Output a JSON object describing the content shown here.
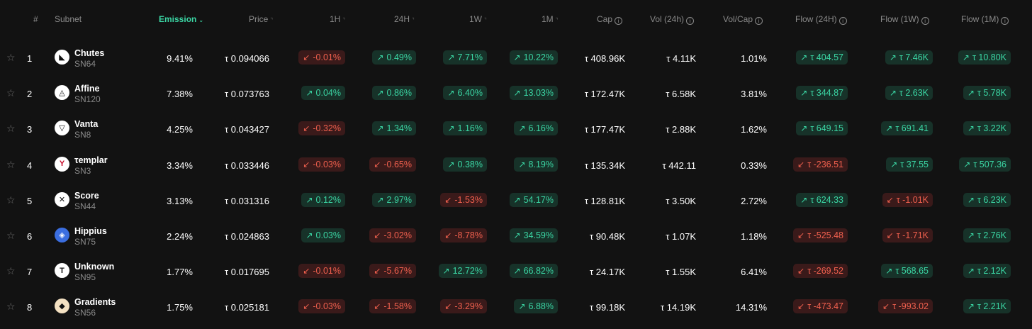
{
  "header": {
    "rank": "#",
    "subnet": "Subnet",
    "emission": "Emission",
    "price": "Price",
    "h1": "1H",
    "h24": "24H",
    "w1": "1W",
    "m1": "1M",
    "cap": "Cap",
    "vol": "Vol (24h)",
    "volcap": "Vol/Cap",
    "flow24": "Flow (24H)",
    "flow1w": "Flow (1W)",
    "flow1m": "Flow (1M)"
  },
  "icons": {
    "star": "star-outline-icon",
    "info": "info-circle-icon",
    "up": "arrow-up-right-icon",
    "down": "arrow-down-left-icon",
    "sort": "chevron-down-icon"
  },
  "colors": {
    "positive": "#3bd6a4",
    "negative": "#f0604e",
    "background": "#121212"
  },
  "rows": [
    {
      "rank": "1",
      "name": "Chutes",
      "sn": "SN64",
      "emission": "9.41%",
      "price": "τ 0.094066",
      "h1": {
        "v": "-0.01%",
        "d": "down"
      },
      "h24": {
        "v": "0.49%",
        "d": "up"
      },
      "w1": {
        "v": "7.71%",
        "d": "up"
      },
      "m1": {
        "v": "10.22%",
        "d": "up"
      },
      "cap": "τ 408.96K",
      "vol": "τ 4.11K",
      "volcap": "1.01%",
      "f24": {
        "v": "τ 404.57",
        "d": "up"
      },
      "f1w": {
        "v": "τ 7.46K",
        "d": "up"
      },
      "f1m": {
        "v": "τ 10.80K",
        "d": "up"
      }
    },
    {
      "rank": "2",
      "name": "Affine",
      "sn": "SN120",
      "emission": "7.38%",
      "price": "τ 0.073763",
      "h1": {
        "v": "0.04%",
        "d": "up"
      },
      "h24": {
        "v": "0.86%",
        "d": "up"
      },
      "w1": {
        "v": "6.40%",
        "d": "up"
      },
      "m1": {
        "v": "13.03%",
        "d": "up"
      },
      "cap": "τ 172.47K",
      "vol": "τ 6.58K",
      "volcap": "3.81%",
      "f24": {
        "v": "τ 344.87",
        "d": "up"
      },
      "f1w": {
        "v": "τ 2.63K",
        "d": "up"
      },
      "f1m": {
        "v": "τ 5.78K",
        "d": "up"
      }
    },
    {
      "rank": "3",
      "name": "Vanta",
      "sn": "SN8",
      "emission": "4.25%",
      "price": "τ 0.043427",
      "h1": {
        "v": "-0.32%",
        "d": "down"
      },
      "h24": {
        "v": "1.34%",
        "d": "up"
      },
      "w1": {
        "v": "1.16%",
        "d": "up"
      },
      "m1": {
        "v": "6.16%",
        "d": "up"
      },
      "cap": "τ 177.47K",
      "vol": "τ 2.88K",
      "volcap": "1.62%",
      "f24": {
        "v": "τ 649.15",
        "d": "up"
      },
      "f1w": {
        "v": "τ 691.41",
        "d": "up"
      },
      "f1m": {
        "v": "τ 3.22K",
        "d": "up"
      }
    },
    {
      "rank": "4",
      "name": "τemplar",
      "sn": "SN3",
      "emission": "3.34%",
      "price": "τ 0.033446",
      "h1": {
        "v": "-0.03%",
        "d": "down"
      },
      "h24": {
        "v": "-0.65%",
        "d": "down"
      },
      "w1": {
        "v": "0.38%",
        "d": "up"
      },
      "m1": {
        "v": "8.19%",
        "d": "up"
      },
      "cap": "τ 135.34K",
      "vol": "τ 442.11",
      "volcap": "0.33%",
      "f24": {
        "v": "τ -236.51",
        "d": "down"
      },
      "f1w": {
        "v": "τ 37.55",
        "d": "up"
      },
      "f1m": {
        "v": "τ 507.36",
        "d": "up"
      }
    },
    {
      "rank": "5",
      "name": "Score",
      "sn": "SN44",
      "emission": "3.13%",
      "price": "τ 0.031316",
      "h1": {
        "v": "0.12%",
        "d": "up"
      },
      "h24": {
        "v": "2.97%",
        "d": "up"
      },
      "w1": {
        "v": "-1.53%",
        "d": "down"
      },
      "m1": {
        "v": "54.17%",
        "d": "up"
      },
      "cap": "τ 128.81K",
      "vol": "τ 3.50K",
      "volcap": "2.72%",
      "f24": {
        "v": "τ 624.33",
        "d": "up"
      },
      "f1w": {
        "v": "τ -1.01K",
        "d": "down"
      },
      "f1m": {
        "v": "τ 6.23K",
        "d": "up"
      }
    },
    {
      "rank": "6",
      "name": "Hippius",
      "sn": "SN75",
      "emission": "2.24%",
      "price": "τ 0.024863",
      "h1": {
        "v": "0.03%",
        "d": "up"
      },
      "h24": {
        "v": "-3.02%",
        "d": "down"
      },
      "w1": {
        "v": "-8.78%",
        "d": "down"
      },
      "m1": {
        "v": "34.59%",
        "d": "up"
      },
      "cap": "τ 90.48K",
      "vol": "τ 1.07K",
      "volcap": "1.18%",
      "f24": {
        "v": "τ -525.48",
        "d": "down"
      },
      "f1w": {
        "v": "τ -1.71K",
        "d": "down"
      },
      "f1m": {
        "v": "τ 2.76K",
        "d": "up"
      }
    },
    {
      "rank": "7",
      "name": "Unknown",
      "sn": "SN95",
      "emission": "1.77%",
      "price": "τ 0.017695",
      "h1": {
        "v": "-0.01%",
        "d": "down"
      },
      "h24": {
        "v": "-5.67%",
        "d": "down"
      },
      "w1": {
        "v": "12.72%",
        "d": "up"
      },
      "m1": {
        "v": "66.82%",
        "d": "up"
      },
      "cap": "τ 24.17K",
      "vol": "τ 1.55K",
      "volcap": "6.41%",
      "f24": {
        "v": "τ -269.52",
        "d": "down"
      },
      "f1w": {
        "v": "τ 568.65",
        "d": "up"
      },
      "f1m": {
        "v": "τ 2.12K",
        "d": "up"
      }
    },
    {
      "rank": "8",
      "name": "Gradients",
      "sn": "SN56",
      "emission": "1.75%",
      "price": "τ 0.025181",
      "h1": {
        "v": "-0.03%",
        "d": "down"
      },
      "h24": {
        "v": "-1.58%",
        "d": "down"
      },
      "w1": {
        "v": "-3.29%",
        "d": "down"
      },
      "m1": {
        "v": "6.88%",
        "d": "up"
      },
      "cap": "τ 99.18K",
      "vol": "τ 14.19K",
      "volcap": "14.31%",
      "f24": {
        "v": "τ -473.47",
        "d": "down"
      },
      "f1w": {
        "v": "τ -993.02",
        "d": "down"
      },
      "f1m": {
        "v": "τ 2.21K",
        "d": "up"
      }
    }
  ]
}
